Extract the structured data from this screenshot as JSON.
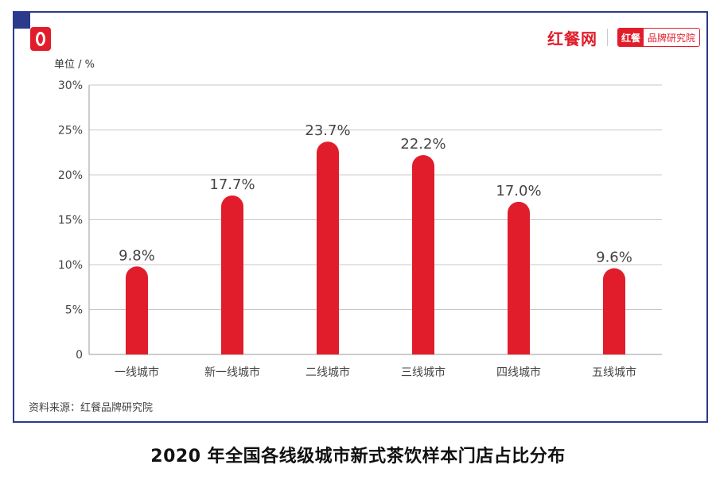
{
  "header": {
    "site_name": "红餐网",
    "badge_main": "红餐",
    "badge_sub": "品牌研究院"
  },
  "unit_label": "单位 / %",
  "source": "资料来源：红餐品牌研究院",
  "caption": "2020 年全国各线级城市新式茶饮样本门店占比分布",
  "colors": {
    "bar": "#e11d2b",
    "frame": "#2b3a8c",
    "grid": "#c8c8c8"
  },
  "chart_data": {
    "type": "bar",
    "title": "2020 年全国各线级城市新式茶饮样本门店占比分布",
    "ylabel": "单位 / %",
    "xlabel": "",
    "categories": [
      "一线城市",
      "新一线城市",
      "二线城市",
      "三线城市",
      "四线城市",
      "五线城市"
    ],
    "values": [
      9.8,
      17.7,
      23.7,
      22.2,
      17.0,
      9.6
    ],
    "value_labels": [
      "9.8%",
      "17.7%",
      "23.7%",
      "22.2%",
      "17.0%",
      "9.6%"
    ],
    "ylim": [
      0,
      30
    ],
    "yticks": [
      0,
      5,
      10,
      15,
      20,
      25,
      30
    ],
    "ytick_labels": [
      "0",
      "5%",
      "10%",
      "15%",
      "20%",
      "25%",
      "30%"
    ],
    "grid": true,
    "legend": "none"
  }
}
